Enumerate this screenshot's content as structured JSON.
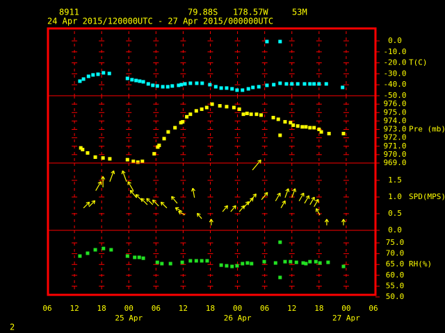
{
  "header": {
    "station": "8911",
    "lat": "79.88S",
    "lon": "178.57W",
    "elev": "53M",
    "period": "24 Apr 2015/120000UTC - 27 Apr 2015/000000UTC"
  },
  "footer": "2",
  "chart_data": [
    {
      "type": "scatter",
      "ylabel": "T(C)",
      "color": "#00ffff",
      "xlim": [
        6,
        78
      ],
      "ylim": [
        -50,
        12
      ],
      "yticks": [
        {
          "value": 0,
          "label": "0.0"
        },
        {
          "value": -10,
          "label": "-10.0"
        },
        {
          "value": -20,
          "label": "-20.0"
        },
        {
          "value": -30,
          "label": "-30.0"
        },
        {
          "value": -40,
          "label": "-40.0"
        },
        {
          "value": -50,
          "label": "-50.0"
        }
      ],
      "x": [
        13.2,
        14,
        15.1,
        16.1,
        17.2,
        18.4,
        19.7,
        23.7,
        24.7,
        25.6,
        26.4,
        27.2,
        28.3,
        29.3,
        30.3,
        31.5,
        32.6,
        33.6,
        35,
        35.6,
        36.4,
        37.6,
        39,
        40.2,
        41.9,
        43.2,
        44.4,
        45.6,
        46.8,
        47.9,
        49.1,
        50.4,
        51.4,
        52.7,
        54.5,
        54.5,
        56,
        57.4,
        57.4,
        58.8,
        60,
        61.3,
        62.8,
        64,
        64.9,
        66,
        67.6,
        71.2
      ],
      "values": [
        -36.7,
        -34.8,
        -32.3,
        -31,
        -30.4,
        -29.1,
        -29.7,
        -34.2,
        -35.4,
        -36.1,
        -36.7,
        -37.3,
        -39.2,
        -40.5,
        -41.1,
        -41.8,
        -41.8,
        -41.1,
        -40.5,
        -39.9,
        -39.2,
        -38.6,
        -38.6,
        -38.6,
        -39.9,
        -41.8,
        -43,
        -43,
        -43.7,
        -44.9,
        -44.9,
        -43.7,
        -42.4,
        -41.8,
        -40.5,
        -0.6,
        -39.9,
        -38.6,
        -0.6,
        -39.2,
        -39.2,
        -39.2,
        -39.2,
        -39.2,
        -39.2,
        -39.2,
        -39.2,
        -42.4
      ]
    },
    {
      "type": "scatter",
      "ylabel": "Pre (mb)",
      "color": "#ffff00",
      "xlim": [
        6,
        78
      ],
      "ylim": [
        969,
        977
      ],
      "yticks": [
        {
          "value": 976,
          "label": "976.0"
        },
        {
          "value": 975,
          "label": "975.0"
        },
        {
          "value": 974,
          "label": "974.0"
        },
        {
          "value": 973,
          "label": "973.0"
        },
        {
          "value": 972,
          "label": "972.0"
        },
        {
          "value": 971,
          "label": "971.0"
        },
        {
          "value": 970,
          "label": "970.0"
        },
        {
          "value": 969,
          "label": "969.0"
        }
      ],
      "x": [
        13.4,
        13.8,
        14.9,
        16.6,
        18.3,
        19.8,
        23.7,
        25,
        26,
        27,
        29.6,
        30.4,
        30.7,
        31.8,
        32.7,
        34.2,
        35.5,
        35.9,
        36.8,
        37.6,
        38.9,
        40.1,
        41.2,
        42.4,
        44.1,
        45.6,
        47.2,
        48.4,
        49.3,
        50.1,
        51,
        52.2,
        53.2,
        55.9,
        57,
        57.4,
        58.5,
        59.7,
        60.3,
        61.3,
        62.3,
        63.1,
        64,
        64.9,
        66,
        66.5,
        68.2,
        71.4
      ],
      "values": [
        970.8,
        970.6,
        970.2,
        969.7,
        969.6,
        969.5,
        969.4,
        969.2,
        969.1,
        969.2,
        970.1,
        970.9,
        971.1,
        971.9,
        972.7,
        973.2,
        973.8,
        973.9,
        974.5,
        974.8,
        975.2,
        975.4,
        975.6,
        976,
        975.8,
        975.7,
        975.6,
        975.4,
        974.8,
        974.9,
        974.8,
        974.8,
        974.7,
        974.4,
        974.2,
        972.3,
        973.9,
        973.8,
        973.5,
        973.4,
        973.3,
        973.3,
        973.2,
        973.2,
        973,
        972.7,
        972.5,
        972.5
      ]
    },
    {
      "type": "wind",
      "ylabel": "SPD(MPS)",
      "color": "#ffff00",
      "xlim": [
        6,
        78
      ],
      "ylim": [
        0,
        2.02
      ],
      "yticks": [
        {
          "value": 1.5,
          "label": "1.5"
        },
        {
          "value": 1,
          "label": "1.0"
        },
        {
          "value": 0.5,
          "label": "0.5"
        },
        {
          "value": 0,
          "label": "0.0"
        }
      ],
      "x": [
        14,
        15.2,
        16.7,
        18.3,
        19.8,
        23.5,
        25,
        25.7,
        27,
        28.1,
        29.3,
        30.6,
        32.4,
        34.7,
        35.8,
        36.4,
        38.5,
        40.1,
        42.2,
        44.7,
        46.5,
        48.4,
        49.3,
        50.2,
        50.8,
        51.3,
        53.3,
        56.4,
        57.6,
        58.5,
        60,
        61.6,
        62.8,
        64,
        64.9,
        66.2,
        67.7,
        71.4
      ],
      "values": [
        0.67,
        0.71,
        1.19,
        1.29,
        1.46,
        1.46,
        1.19,
        0.98,
        0.88,
        0.77,
        0.77,
        0.73,
        0.67,
        0.81,
        0.56,
        0.46,
        0.98,
        0.35,
        0.15,
        0.56,
        0.56,
        0.56,
        0.67,
        0.77,
        0.88,
        1.81,
        0.92,
        0.88,
        0.67,
        0.98,
        0.98,
        0.88,
        0.81,
        0.77,
        0.71,
        0.46,
        0.15,
        0.15
      ],
      "direction": [
        45,
        45,
        30,
        0,
        20,
        340,
        330,
        320,
        315,
        315,
        315,
        315,
        315,
        320,
        300,
        300,
        350,
        320,
        0,
        40,
        40,
        40,
        40,
        40,
        40,
        40,
        40,
        30,
        30,
        20,
        20,
        30,
        30,
        30,
        30,
        330,
        0,
        0
      ]
    },
    {
      "type": "scatter",
      "ylabel": "RH(%)",
      "color": "#22e022",
      "xlim": [
        6,
        78
      ],
      "ylim": [
        50,
        80.8
      ],
      "yticks": [
        {
          "value": 75,
          "label": "75.0"
        },
        {
          "value": 70,
          "label": "70.0"
        },
        {
          "value": 65,
          "label": "65.0"
        },
        {
          "value": 60,
          "label": "60.0"
        },
        {
          "value": 55,
          "label": "55.0"
        },
        {
          "value": 50,
          "label": "50.0"
        }
      ],
      "x": [
        13.2,
        14.9,
        16.6,
        18.4,
        20.1,
        23.7,
        25.3,
        26.3,
        27.2,
        30.3,
        31.3,
        33.2,
        35.8,
        37.6,
        38.9,
        40.1,
        41.3,
        44.4,
        45.6,
        46.8,
        47.9,
        49.1,
        50.2,
        51.1,
        53.9,
        56.4,
        57.4,
        57.4,
        58.5,
        59.7,
        61,
        62.5,
        63.1,
        64,
        65.3,
        66.2,
        68,
        71.4
      ],
      "values": [
        68.9,
        70.2,
        71.8,
        72.4,
        71.8,
        68.9,
        68.3,
        68.3,
        67.9,
        66,
        65.4,
        65.4,
        66,
        66.7,
        66.7,
        66.7,
        66.7,
        64.7,
        64.4,
        64.1,
        64.4,
        65.4,
        65.7,
        65.4,
        66.3,
        65.7,
        75.3,
        59,
        66.3,
        66.3,
        66,
        65.7,
        65.4,
        66.3,
        66.3,
        65.7,
        66,
        64.1
      ],
      "xticks": [
        {
          "value": 6,
          "label": "06"
        },
        {
          "value": 12,
          "label": "12"
        },
        {
          "value": 18,
          "label": "18"
        },
        {
          "value": 24,
          "label": "00"
        },
        {
          "value": 30,
          "label": "06"
        },
        {
          "value": 36,
          "label": "12"
        },
        {
          "value": 42,
          "label": "18"
        },
        {
          "value": 48,
          "label": "00"
        },
        {
          "value": 54,
          "label": "06"
        },
        {
          "value": 60,
          "label": "12"
        },
        {
          "value": 66,
          "label": "18"
        },
        {
          "value": 72,
          "label": "00"
        },
        {
          "value": 78,
          "label": "06"
        }
      ],
      "date_ticks": [
        {
          "value": 24,
          "label": "25 Apr"
        },
        {
          "value": 48,
          "label": "26 Apr"
        },
        {
          "value": 72,
          "label": "27 Apr"
        }
      ]
    }
  ]
}
